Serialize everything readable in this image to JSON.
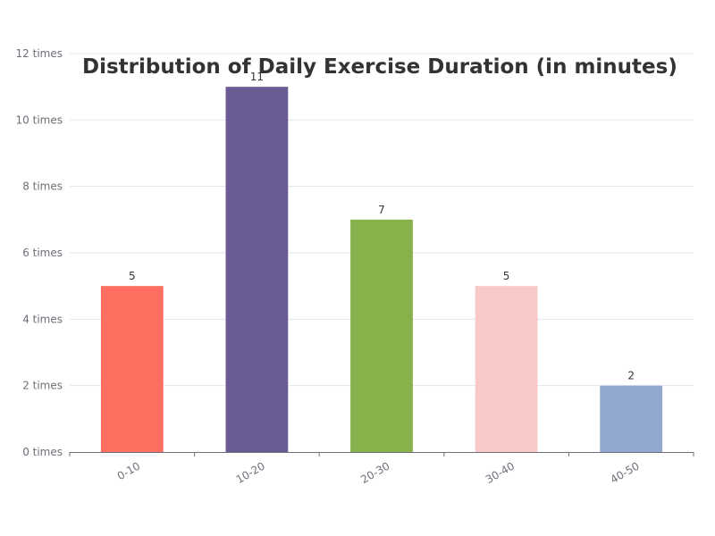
{
  "chart_data": {
    "type": "bar",
    "title": "Distribution of Daily Exercise Duration (in minutes)",
    "categories": [
      "0-10",
      "10-20",
      "20-30",
      "30-40",
      "40-50"
    ],
    "values": [
      5,
      11,
      7,
      5,
      2
    ],
    "value_labels": [
      "5",
      "11",
      "7",
      "5",
      "2"
    ],
    "colors": [
      "#ff6f61",
      "#6b5b95",
      "#88b04b",
      "#f7cac9",
      "#92a8d1"
    ],
    "ylim": [
      0,
      12
    ],
    "yticks": [
      0,
      2,
      4,
      6,
      8,
      10,
      12
    ],
    "ytick_labels": [
      "0 times",
      "2 times",
      "4 times",
      "6 times",
      "8 times",
      "10 times",
      "12 times"
    ],
    "xlabel": "",
    "ylabel": "",
    "grid": true,
    "legend": false
  }
}
